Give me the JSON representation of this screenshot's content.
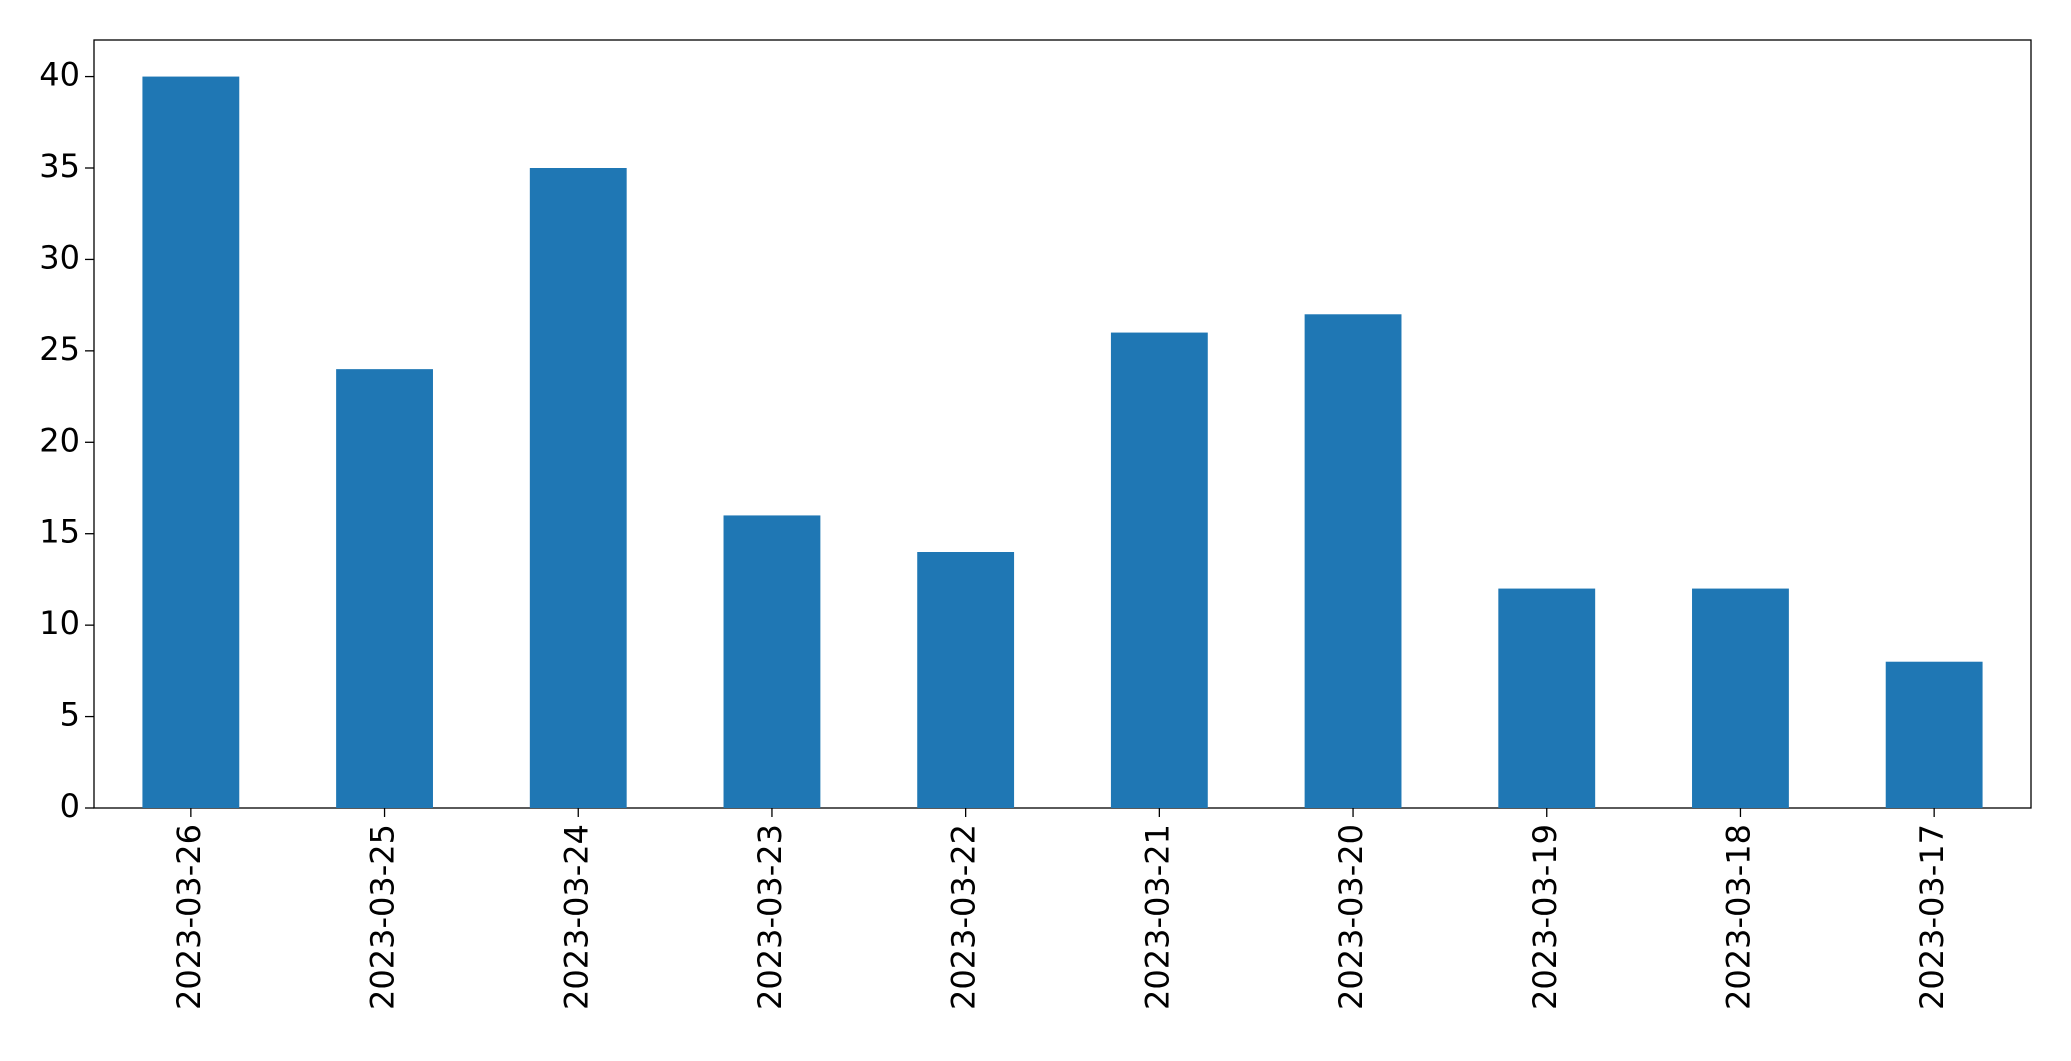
{
  "chart_data": {
    "type": "bar",
    "categories": [
      "2023-03-26",
      "2023-03-25",
      "2023-03-24",
      "2023-03-23",
      "2023-03-22",
      "2023-03-21",
      "2023-03-20",
      "2023-03-19",
      "2023-03-18",
      "2023-03-17"
    ],
    "values": [
      40,
      24,
      35,
      16,
      14,
      26,
      27,
      12,
      12,
      8
    ],
    "color": "#1f77b4",
    "ylim": [
      0,
      42
    ],
    "yticks": [
      0,
      5,
      10,
      15,
      20,
      25,
      30,
      35,
      40
    ],
    "grid": false
  }
}
